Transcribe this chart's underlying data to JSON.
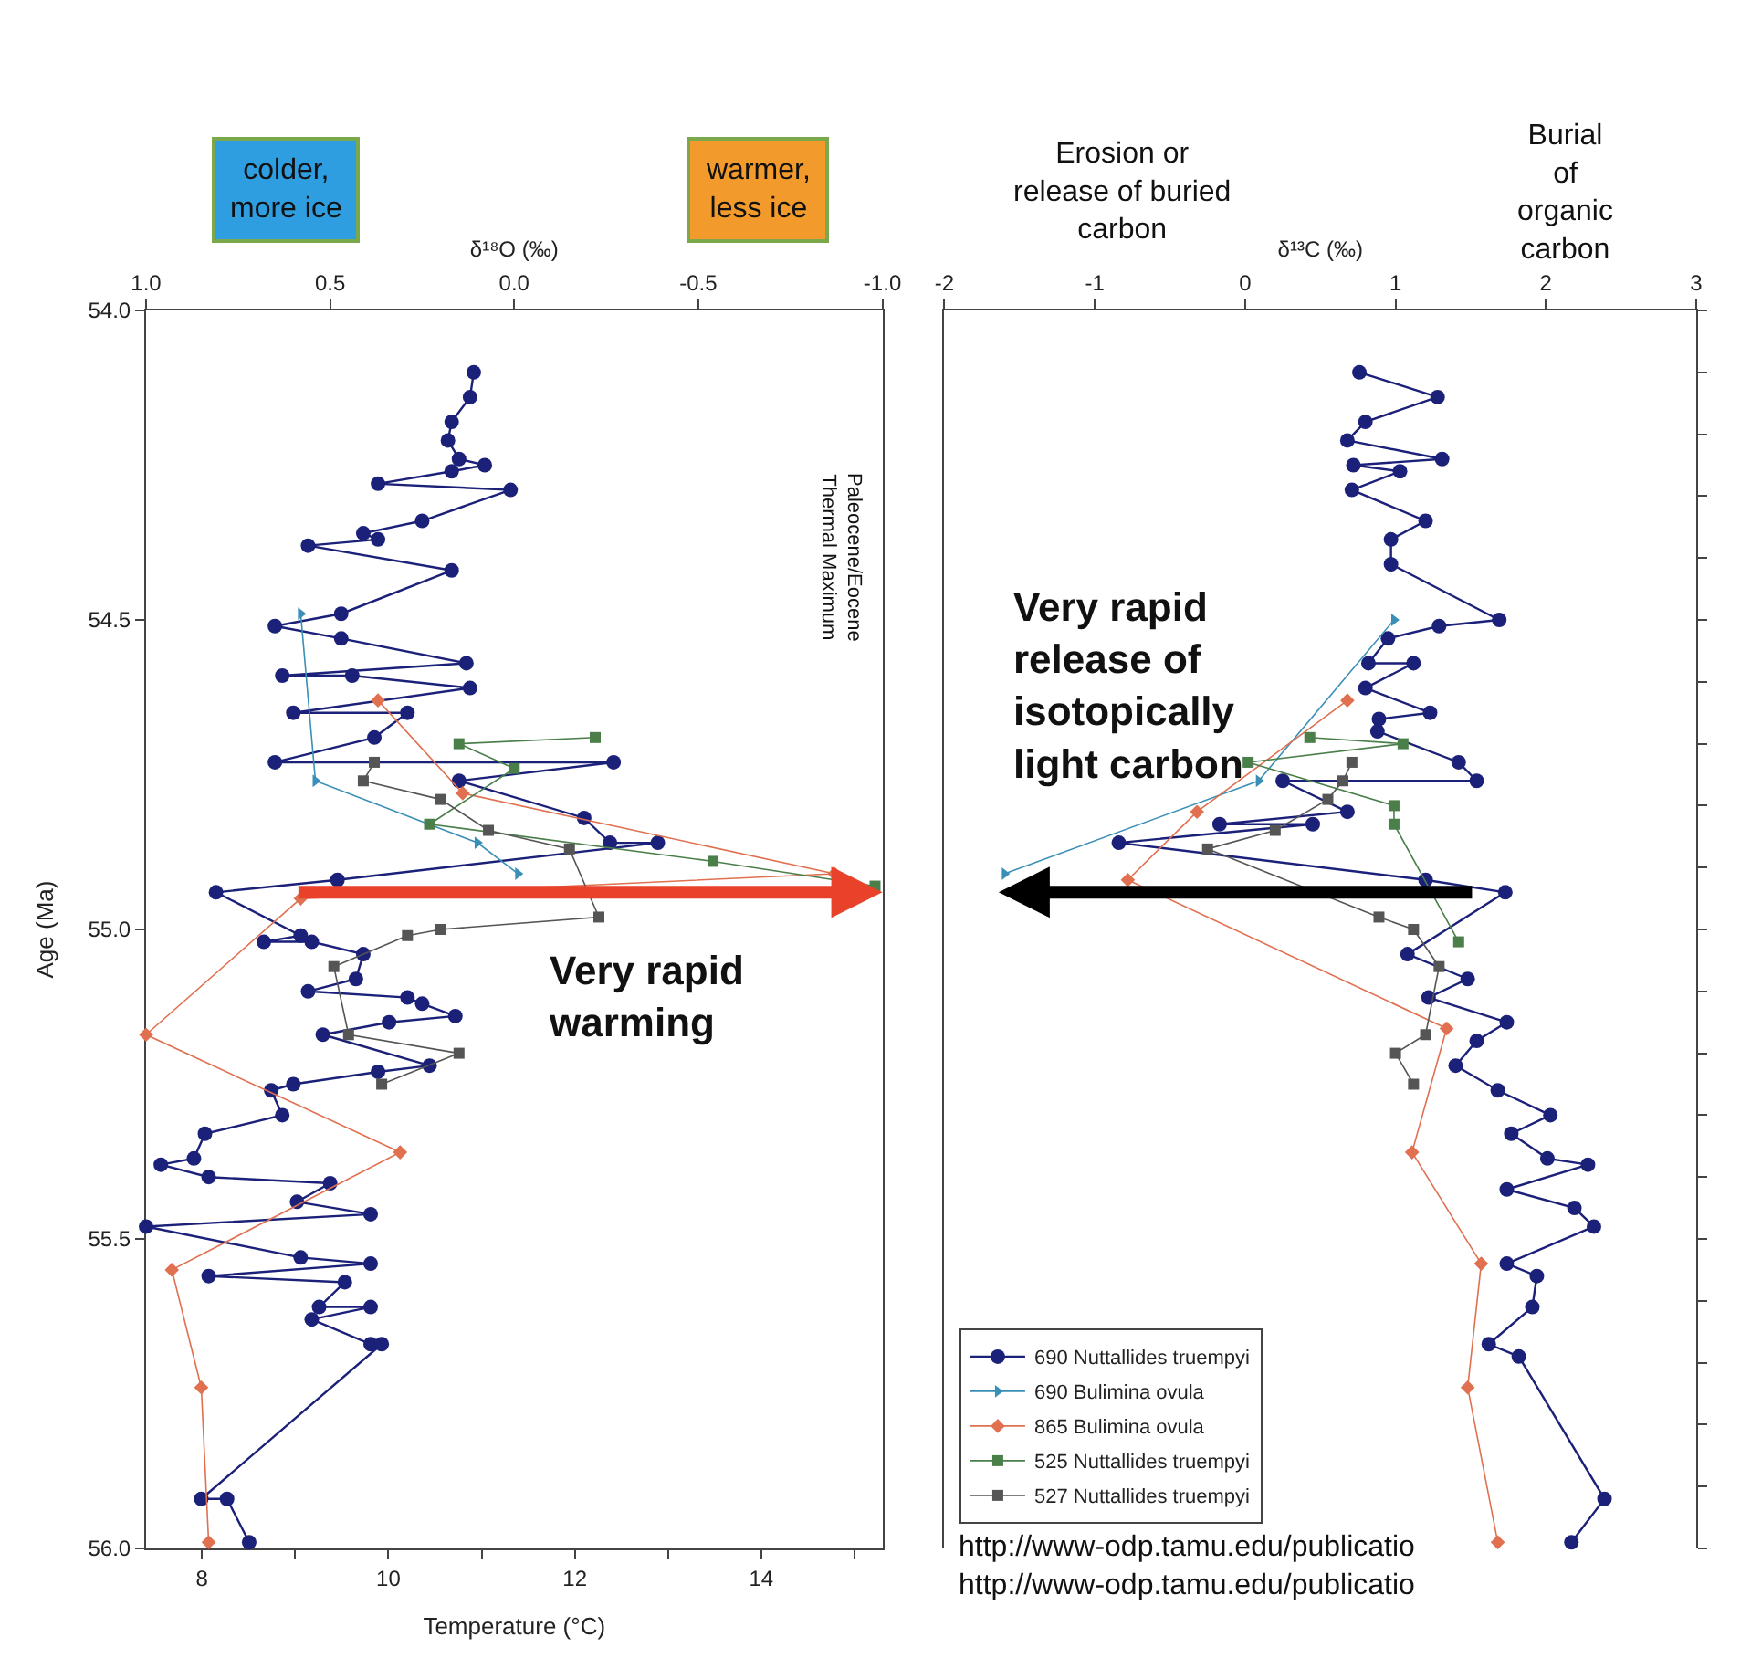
{
  "chart_data": [
    {
      "type": "line",
      "xlabel": "Temperature (°C)",
      "x2label": "δ¹⁸O (‰)",
      "ylabel": "Age (Ma)",
      "xlim": [
        7.4,
        15.3
      ],
      "xticks": [
        8,
        {
          "value": 9,
          "label": null
        },
        10,
        {
          "value": 11,
          "label": null
        },
        12,
        {
          "value": 13,
          "label": null
        },
        14,
        {
          "value": 15,
          "label": null
        }
      ],
      "x2lim": [
        1.0,
        -1.0
      ],
      "x2ticks": [
        {
          "value": 1,
          "label": "1.0"
        },
        {
          "value": 0.5,
          "label": "0.5"
        },
        {
          "value": 0,
          "label": "0.0"
        },
        {
          "value": -0.5,
          "label": "-0.5"
        },
        {
          "value": -1,
          "label": "-1.0"
        }
      ],
      "ylim": [
        56.0,
        54.0
      ],
      "yticks": [
        {
          "value": 54,
          "label": "54.0"
        },
        {
          "value": 54.5,
          "label": "54.5"
        },
        {
          "value": 55,
          "label": "55.0"
        },
        {
          "value": 55.5,
          "label": "55.5"
        },
        {
          "value": 56,
          "label": "56.0"
        }
      ],
      "series": [
        {
          "color": "#1b2079",
          "marker": "circle",
          "axis": "x2",
          "x": [
            0.11,
            0.12,
            0.17,
            0.18,
            0.15,
            0.08,
            0.17,
            0.37,
            0.01,
            0.25,
            0.41,
            0.37,
            0.56,
            0.17,
            0.47,
            0.65,
            0.47,
            0.13,
            0.63,
            0.44,
            0.12,
            0.6,
            0.29,
            0.38,
            0.65,
            -0.27,
            0.15,
            -0.19,
            -0.26,
            -0.39,
            0.48,
            0.81,
            0.58,
            0.68,
            0.55,
            0.41,
            0.43,
            0.56,
            0.29,
            0.25,
            0.16,
            0.34,
            0.52,
            0.23,
            0.37,
            0.6,
            0.66,
            0.63,
            0.84,
            0.87,
            0.96,
            0.83,
            0.5,
            0.59,
            0.39,
            1.0,
            0.58,
            0.39,
            0.83,
            0.46,
            0.53,
            0.39,
            0.55,
            0.39,
            0.36,
            0.85,
            0.78,
            0.72
          ],
          "values": [
            54.1,
            54.14,
            54.18,
            54.21,
            54.24,
            54.25,
            54.26,
            54.28,
            54.29,
            54.34,
            54.36,
            54.37,
            54.38,
            54.42,
            54.49,
            54.51,
            54.53,
            54.57,
            54.59,
            54.59,
            54.61,
            54.65,
            54.65,
            54.69,
            54.73,
            54.73,
            54.76,
            54.82,
            54.86,
            54.86,
            54.92,
            54.94,
            55.01,
            55.02,
            55.02,
            55.04,
            55.08,
            55.1,
            55.11,
            55.12,
            55.14,
            55.15,
            55.17,
            55.22,
            55.23,
            55.25,
            55.26,
            55.3,
            55.33,
            55.37,
            55.38,
            55.4,
            55.41,
            55.44,
            55.46,
            55.48,
            55.53,
            55.54,
            55.56,
            55.57,
            55.61,
            55.61,
            55.63,
            55.67,
            55.67,
            55.92,
            55.92,
            55.99
          ]
        },
        {
          "color": "#3a8fb7",
          "marker": "triangle",
          "axis": "x2",
          "x": [
            0.58,
            0.54,
            0.1,
            -0.01
          ],
          "values": [
            54.49,
            54.76,
            54.86,
            54.91
          ]
        },
        {
          "color": "#e07050",
          "marker": "diamond",
          "axis": "x2",
          "x": [
            0.37,
            0.14,
            -0.87,
            0.58,
            1.0,
            0.31,
            0.93,
            0.85,
            0.83
          ],
          "values": [
            54.63,
            54.78,
            54.91,
            54.95,
            55.17,
            55.36,
            55.55,
            55.74,
            55.99
          ]
        },
        {
          "color": "#4a7f4a",
          "marker": "square",
          "axis": "x2",
          "x": [
            -0.22,
            0.15,
            0.0,
            0.23,
            -0.54,
            -0.98
          ],
          "values": [
            54.69,
            54.7,
            54.74,
            54.83,
            54.89,
            54.93
          ]
        },
        {
          "color": "#555555",
          "marker": "square",
          "axis": "x2",
          "x": [
            0.38,
            0.41,
            0.2,
            0.07,
            -0.15,
            -0.23,
            0.2,
            0.29,
            0.49,
            0.45,
            0.15,
            0.36
          ],
          "values": [
            54.73,
            54.76,
            54.79,
            54.84,
            54.87,
            54.98,
            55.0,
            55.01,
            55.06,
            55.17,
            55.2,
            55.25
          ]
        }
      ],
      "annotations": [
        "Very rapid\nwarming",
        "Paleocene/Eocene\nThermal Maximum",
        "colder,\nmore ice",
        "warmer,\nless ice"
      ]
    },
    {
      "type": "line",
      "xlabel": "δ¹³C (‰)",
      "xlim": [
        -2,
        3
      ],
      "xticks": [
        -2,
        -1,
        0,
        1,
        2,
        3
      ],
      "ylim": [
        56.0,
        54.0
      ],
      "yticks": [
        {
          "value": 54.0,
          "label": null
        },
        {
          "value": 54.1,
          "label": null
        },
        {
          "value": 54.2,
          "label": null
        },
        {
          "value": 54.3,
          "label": null
        },
        {
          "value": 54.4,
          "label": null
        },
        {
          "value": 54.5,
          "label": null
        },
        {
          "value": 54.6,
          "label": null
        },
        {
          "value": 54.7,
          "label": null
        },
        {
          "value": 54.8,
          "label": null
        },
        {
          "value": 54.9,
          "label": null
        },
        {
          "value": 55.0,
          "label": null
        },
        {
          "value": 55.1,
          "label": null
        },
        {
          "value": 55.2,
          "label": null
        },
        {
          "value": 55.3,
          "label": null
        },
        {
          "value": 55.4,
          "label": null
        },
        {
          "value": 55.5,
          "label": null
        },
        {
          "value": 55.6,
          "label": null
        },
        {
          "value": 55.7,
          "label": null
        },
        {
          "value": 55.8,
          "label": null
        },
        {
          "value": 55.9,
          "label": null
        },
        {
          "value": 56.0,
          "label": null
        }
      ],
      "tick_labels": "x",
      "legend": "bottom left",
      "series": [
        {
          "name": "690 Nuttallides truempyi",
          "color": "#1b2079",
          "marker": "circle",
          "x": [
            0.76,
            1.28,
            0.8,
            0.68,
            1.31,
            0.72,
            1.03,
            0.71,
            1.2,
            0.97,
            0.97,
            1.69,
            1.29,
            0.95,
            0.82,
            1.12,
            0.8,
            1.23,
            0.89,
            0.88,
            1.42,
            1.54,
            0.25,
            0.68,
            -0.17,
            0.45,
            -0.84,
            1.2,
            1.73,
            1.08,
            1.48,
            1.22,
            1.74,
            1.54,
            1.4,
            1.68,
            2.03,
            1.77,
            2.01,
            2.28,
            1.74,
            2.19,
            2.32,
            1.74,
            1.94,
            1.91,
            1.62,
            1.82,
            2.39,
            2.17
          ],
          "values": [
            54.1,
            54.14,
            54.18,
            54.21,
            54.24,
            54.25,
            54.26,
            54.29,
            54.34,
            54.37,
            54.41,
            54.5,
            54.51,
            54.53,
            54.57,
            54.57,
            54.61,
            54.65,
            54.66,
            54.68,
            54.73,
            54.76,
            54.76,
            54.81,
            54.83,
            54.83,
            54.86,
            54.92,
            54.94,
            55.04,
            55.08,
            55.11,
            55.15,
            55.18,
            55.22,
            55.26,
            55.3,
            55.33,
            55.37,
            55.38,
            55.42,
            55.45,
            55.48,
            55.54,
            55.56,
            55.61,
            55.67,
            55.69,
            55.92,
            55.99
          ]
        },
        {
          "name": "690 Bulimina ovula",
          "color": "#3a8fb7",
          "marker": "triangle",
          "x": [
            0.99,
            0.09,
            -1.6
          ],
          "values": [
            54.5,
            54.76,
            54.91
          ]
        },
        {
          "name": "865 Bulimina ovula",
          "color": "#e07050",
          "marker": "diamond",
          "x": [
            0.68,
            -0.32,
            -0.78,
            1.34,
            1.11,
            1.57,
            1.48,
            1.68
          ],
          "values": [
            54.63,
            54.81,
            54.92,
            55.16,
            55.36,
            55.54,
            55.74,
            55.99
          ]
        },
        {
          "name": "525 Nuttallides truempyi",
          "color": "#4a7f4a",
          "marker": "square",
          "x": [
            0.43,
            1.05,
            0.02,
            0.99,
            0.99,
            1.42
          ],
          "values": [
            54.69,
            54.7,
            54.73,
            54.8,
            54.83,
            55.02
          ]
        },
        {
          "name": "527 Nuttallides truempyi",
          "color": "#555555",
          "marker": "square",
          "x": [
            0.71,
            0.65,
            0.55,
            0.2,
            -0.25,
            0.89,
            1.12,
            1.29,
            1.2,
            1.0,
            1.12
          ],
          "values": [
            54.73,
            54.76,
            54.79,
            54.84,
            54.87,
            54.98,
            55.0,
            55.06,
            55.17,
            55.2,
            55.25
          ]
        }
      ],
      "annotations": [
        "Very rapid\nrelease of\nisotopically\nlight carbon",
        "Erosion or\nrelease of buried\ncarbon",
        "Burial\nof\norganic\ncarbon",
        "http://www-odp.tamu.edu/publicatio\nhttp://www-odp.tamu.edu/publicatio"
      ]
    }
  ]
}
